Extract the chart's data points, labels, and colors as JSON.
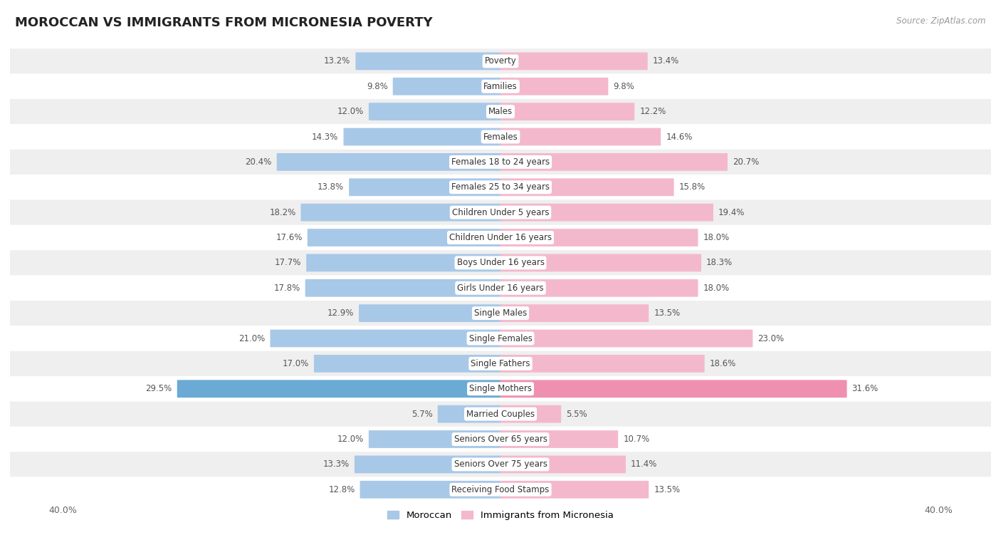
{
  "title": "MOROCCAN VS IMMIGRANTS FROM MICRONESIA POVERTY",
  "source": "Source: ZipAtlas.com",
  "categories": [
    "Poverty",
    "Families",
    "Males",
    "Females",
    "Females 18 to 24 years",
    "Females 25 to 34 years",
    "Children Under 5 years",
    "Children Under 16 years",
    "Boys Under 16 years",
    "Girls Under 16 years",
    "Single Males",
    "Single Females",
    "Single Fathers",
    "Single Mothers",
    "Married Couples",
    "Seniors Over 65 years",
    "Seniors Over 75 years",
    "Receiving Food Stamps"
  ],
  "moroccan": [
    13.2,
    9.8,
    12.0,
    14.3,
    20.4,
    13.8,
    18.2,
    17.6,
    17.7,
    17.8,
    12.9,
    21.0,
    17.0,
    29.5,
    5.7,
    12.0,
    13.3,
    12.8
  ],
  "micronesia": [
    13.4,
    9.8,
    12.2,
    14.6,
    20.7,
    15.8,
    19.4,
    18.0,
    18.3,
    18.0,
    13.5,
    23.0,
    18.6,
    31.6,
    5.5,
    10.7,
    11.4,
    13.5
  ],
  "moroccan_color": "#a8c8e8",
  "micronesia_color": "#f4b8cc",
  "moroccan_highlight_color": "#6aaad4",
  "micronesia_highlight_color": "#f090b0",
  "highlight_row": 13,
  "xlim": 40.0,
  "bar_height": 0.62,
  "bg_color_odd": "#efefef",
  "bg_color_even": "#ffffff",
  "label_fontsize": 8.5,
  "category_fontsize": 8.5,
  "title_fontsize": 13,
  "legend_moroccan": "Moroccan",
  "legend_micronesia": "Immigrants from Micronesia"
}
